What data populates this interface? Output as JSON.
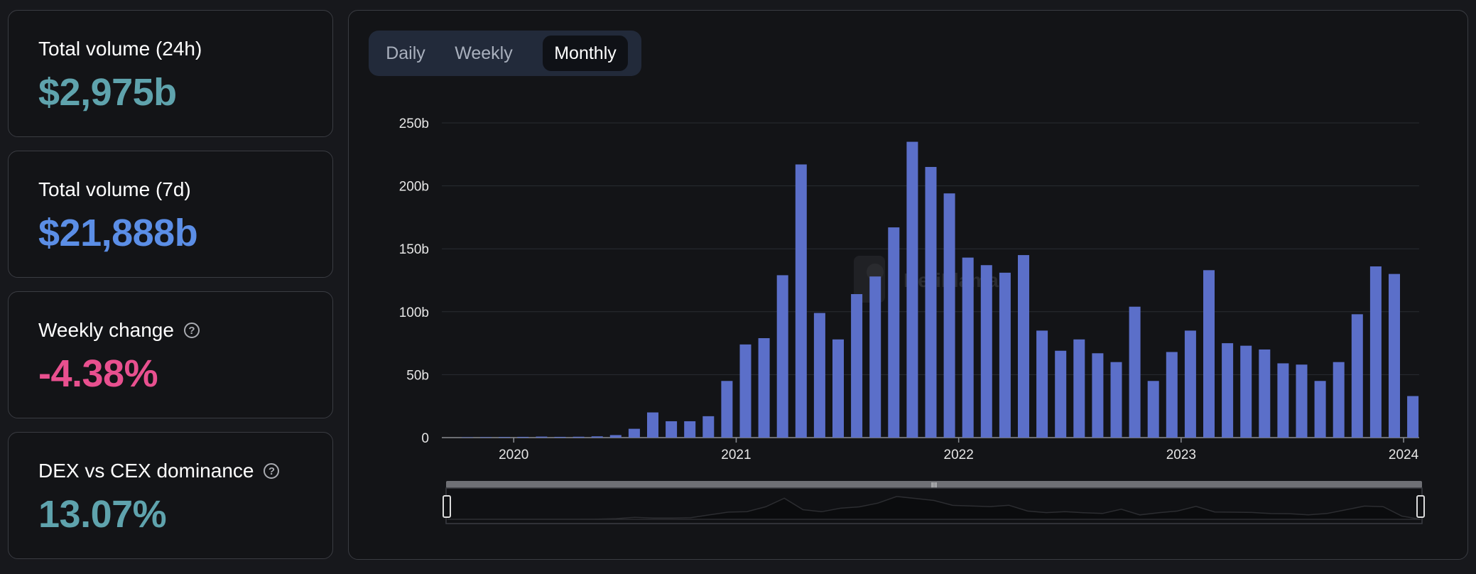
{
  "stats": [
    {
      "label": "Total volume (24h)",
      "value": "$2,975b",
      "color": "#5fa3ad",
      "help": false
    },
    {
      "label": "Total volume (7d)",
      "value": "$21,888b",
      "color": "#5b8ee6",
      "help": false
    },
    {
      "label": "Weekly change",
      "value": "-4.38%",
      "color": "#e8508f",
      "help": true
    },
    {
      "label": "DEX vs CEX dominance",
      "value": "13.07%",
      "color": "#5fa3ad",
      "help": true
    }
  ],
  "tabs": {
    "items": [
      "Daily",
      "Weekly",
      "Monthly"
    ],
    "active": "Monthly"
  },
  "colors": {
    "bar": "#5b6fc9",
    "grid": "#2a2c32",
    "axis_text": "#e6e6e6"
  },
  "chart_data": {
    "type": "bar",
    "title": "",
    "xlabel": "",
    "ylabel": "",
    "x_ticks": [
      "2020",
      "2021",
      "2022",
      "2023",
      "2024"
    ],
    "y_ticks": [
      "0",
      "50b",
      "100b",
      "150b",
      "200b",
      "250b"
    ],
    "ylim": [
      0,
      250
    ],
    "y_unit": "billions USD",
    "grid": true,
    "x": [
      "2019-10",
      "2019-11",
      "2019-12",
      "2020-01",
      "2020-02",
      "2020-03",
      "2020-04",
      "2020-05",
      "2020-06",
      "2020-07",
      "2020-08",
      "2020-09",
      "2020-10",
      "2020-11",
      "2020-12",
      "2021-01",
      "2021-02",
      "2021-03",
      "2021-04",
      "2021-05",
      "2021-06",
      "2021-07",
      "2021-08",
      "2021-09",
      "2021-10",
      "2021-11",
      "2021-12",
      "2022-01",
      "2022-02",
      "2022-03",
      "2022-04",
      "2022-05",
      "2022-06",
      "2022-07",
      "2022-08",
      "2022-09",
      "2022-10",
      "2022-11",
      "2022-12",
      "2023-01",
      "2023-02",
      "2023-03",
      "2023-04",
      "2023-05",
      "2023-06",
      "2023-07",
      "2023-08",
      "2023-09",
      "2023-10",
      "2023-11",
      "2023-12",
      "2024-01",
      "2024-02"
    ],
    "values": [
      0.3,
      0.4,
      0.5,
      0.6,
      0.8,
      0.6,
      0.7,
      1,
      2,
      7,
      20,
      13,
      13,
      17,
      45,
      74,
      79,
      129,
      217,
      99,
      78,
      114,
      128,
      167,
      235,
      215,
      194,
      143,
      137,
      131,
      145,
      85,
      69,
      78,
      67,
      60,
      104,
      45,
      68,
      85,
      133,
      75,
      73,
      70,
      59,
      58,
      45,
      60,
      98,
      136,
      130,
      33,
      0
    ],
    "watermark": "DefiLlama"
  }
}
